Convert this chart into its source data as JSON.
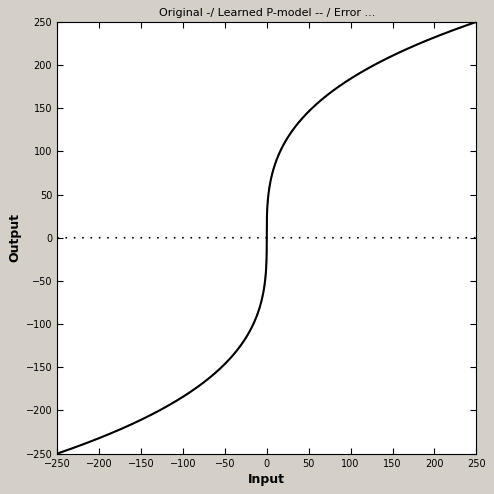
{
  "title": "Original -/ Learned P-model -- / Error ...",
  "xlabel": "Input",
  "ylabel": "Output",
  "xlim": [
    -250,
    250
  ],
  "ylim": [
    -250,
    250
  ],
  "xticks": [
    -250,
    -200,
    -150,
    -100,
    -50,
    0,
    50,
    100,
    150,
    200,
    250
  ],
  "yticks": [
    -250,
    -200,
    -150,
    -100,
    -50,
    0,
    50,
    100,
    150,
    200,
    250
  ],
  "plot_bg_color": "#ffffff",
  "fig_bg_color": "#d4d0c8",
  "line_color": "#000000",
  "figsize": [
    4.94,
    4.94
  ],
  "dpi": 100,
  "tanh_scale_x": 20,
  "tanh_scale_y": 250
}
